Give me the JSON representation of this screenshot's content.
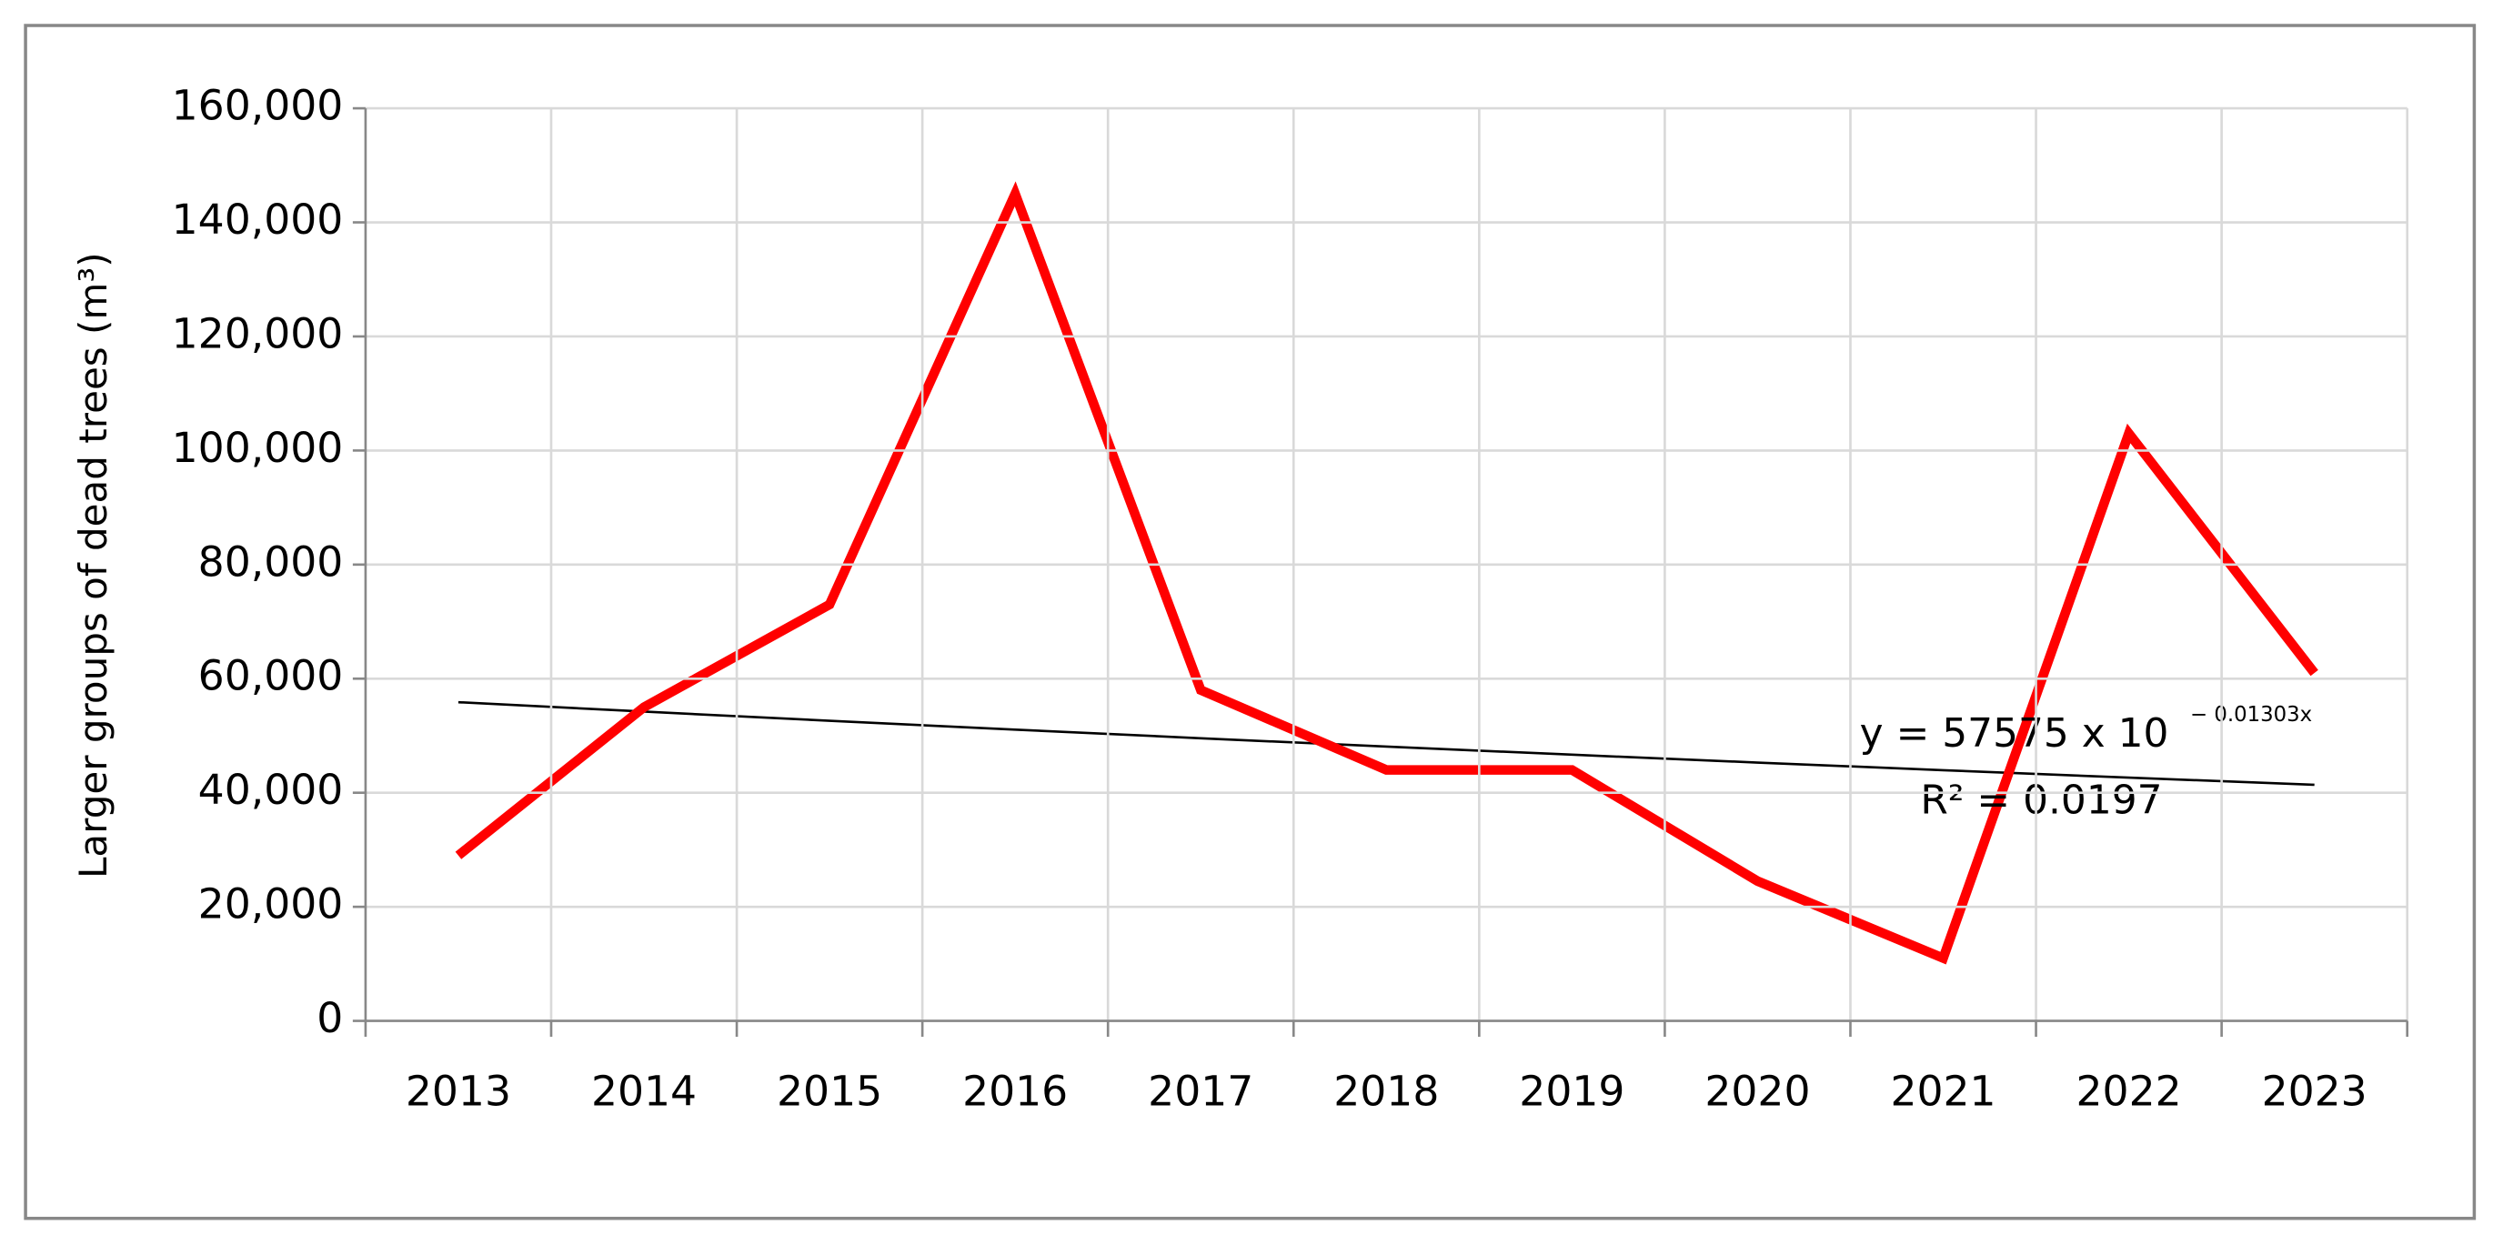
{
  "chart_data": {
    "type": "line",
    "y_axis_label": "Larger groups of dead trees (m³)",
    "categories": [
      "2013",
      "2014",
      "2015",
      "2016",
      "2017",
      "2018",
      "2019",
      "2020",
      "2021",
      "2022",
      "2023"
    ],
    "series": [
      {
        "name": "Larger groups of dead trees",
        "color": "#ff0000",
        "values": [
          29000,
          55000,
          73000,
          145000,
          58000,
          44000,
          44000,
          24500,
          11000,
          103000,
          61000
        ]
      }
    ],
    "ylim": [
      0,
      160000
    ],
    "yticks": [
      0,
      {
        "value": 20000,
        "label": "20,000"
      },
      {
        "value": 40000,
        "label": "40,000"
      },
      {
        "value": 60000,
        "label": "60,000"
      },
      {
        "value": 80000,
        "label": "80,000"
      },
      {
        "value": 100000,
        "label": "100,000"
      },
      {
        "value": 120000,
        "label": "120,000"
      },
      {
        "value": 140000,
        "label": "140,000"
      },
      {
        "value": 160000,
        "label": "160,000"
      }
    ],
    "grid": true,
    "trendline": {
      "kind": "exponential",
      "color": "#000000",
      "coefficient": 57575,
      "rate": -0.01303,
      "equation": "y = 57575 x 10",
      "exponent": "− 0.01303x",
      "r_squared": "R² = 0.0197"
    }
  }
}
